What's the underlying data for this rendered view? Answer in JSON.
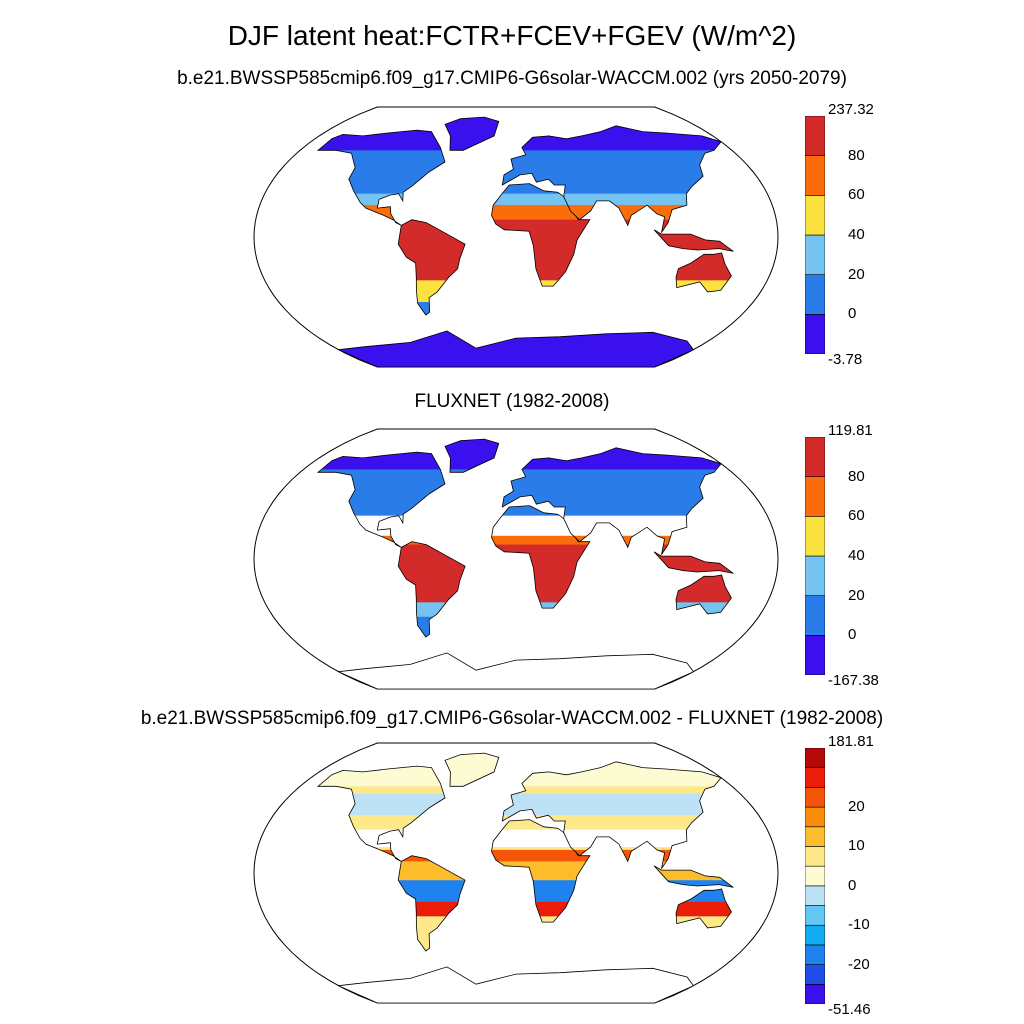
{
  "title": "DJF latent heat:FCTR+FCEV+FGEV (W/m^2)",
  "panels": [
    {
      "title": "b.e21.BWSSP585cmip6.f09_g17.CMIP6-G6solar-WACCM.002 (yrs 2050-2079)",
      "colorbar": {
        "colors": [
          "#3a10ee",
          "#2a7de8",
          "#74c3f0",
          "#fbe23f",
          "#fb6d0a",
          "#d32a2a"
        ],
        "labels": [
          "237.32",
          "80",
          "60",
          "40",
          "20",
          "0",
          "-3.78"
        ]
      }
    },
    {
      "title": "FLUXNET (1982-2008)",
      "colorbar": {
        "colors": [
          "#3a10ee",
          "#2a7de8",
          "#74c3f0",
          "#fbe23f",
          "#fb6d0a",
          "#d32a2a"
        ],
        "labels": [
          "119.81",
          "80",
          "60",
          "40",
          "20",
          "0",
          "-167.38"
        ]
      }
    },
    {
      "title": "b.e21.BWSSP585cmip6.f09_g17.CMIP6-G6solar-WACCM.002 - FLUXNET (1982-2008)",
      "colorbar": {
        "colors": [
          "#3a10ee",
          "#1f4fe6",
          "#1f82ef",
          "#12adf0",
          "#63c6f3",
          "#bde2f5",
          "#fdfbd2",
          "#fde98a",
          "#fbbd2b",
          "#f98c08",
          "#f55508",
          "#ea1e08",
          "#b50808"
        ],
        "labels": [
          "181.81",
          "20",
          "10",
          "0",
          "-10",
          "-20",
          "-51.46"
        ]
      }
    }
  ]
}
